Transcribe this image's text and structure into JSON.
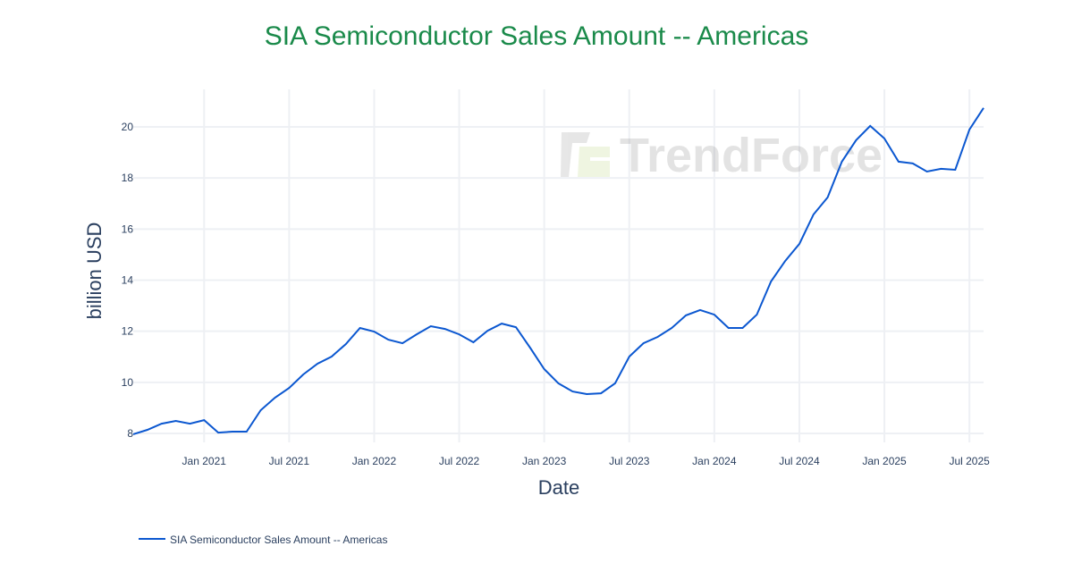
{
  "chart_data": {
    "type": "line",
    "title": "SIA Semiconductor Sales Amount -- Americas",
    "xlabel": "Date",
    "ylabel": "billion USD",
    "x_ticks": [
      "Jan 2021",
      "Jul 2021",
      "Jan 2022",
      "Jul 2022",
      "Jan 2023",
      "Jul 2023",
      "Jan 2024",
      "Jul 2024",
      "Jan 2025",
      "Jul 2025"
    ],
    "y_ticks": [
      8,
      10,
      12,
      14,
      16,
      18,
      20
    ],
    "xlim": [
      "2020-08",
      "2025-08"
    ],
    "ylim": [
      7.6,
      21.6
    ],
    "grid": true,
    "legend_position": "bottom-left",
    "title_color": "#1a8a4a",
    "series": [
      {
        "name": "SIA Semiconductor Sales Amount -- Americas",
        "color": "#0b57d0",
        "x": [
          "2020-08",
          "2020-09",
          "2020-10",
          "2020-11",
          "2020-12",
          "2021-01",
          "2021-02",
          "2021-03",
          "2021-04",
          "2021-05",
          "2021-06",
          "2021-07",
          "2021-08",
          "2021-09",
          "2021-10",
          "2021-11",
          "2021-12",
          "2022-01",
          "2022-02",
          "2022-03",
          "2022-04",
          "2022-05",
          "2022-06",
          "2022-07",
          "2022-08",
          "2022-09",
          "2022-10",
          "2022-11",
          "2022-12",
          "2023-01",
          "2023-02",
          "2023-03",
          "2023-04",
          "2023-05",
          "2023-06",
          "2023-07",
          "2023-08",
          "2023-09",
          "2023-10",
          "2023-11",
          "2023-12",
          "2024-01",
          "2024-02",
          "2024-03",
          "2024-04",
          "2024-05",
          "2024-06",
          "2024-07",
          "2024-08",
          "2024-09",
          "2024-10",
          "2024-11",
          "2024-12",
          "2025-01",
          "2025-02",
          "2025-03",
          "2025-04",
          "2025-05",
          "2025-06",
          "2025-07",
          "2025-08"
        ],
        "values": [
          7.97,
          8.14,
          8.38,
          8.49,
          8.38,
          8.52,
          8.03,
          8.07,
          8.07,
          8.91,
          9.4,
          9.78,
          10.31,
          10.73,
          11.01,
          11.5,
          12.13,
          11.99,
          11.67,
          11.53,
          11.88,
          12.2,
          12.09,
          11.88,
          11.57,
          12.02,
          12.3,
          12.16,
          11.36,
          10.52,
          9.96,
          9.64,
          9.54,
          9.57,
          9.96,
          11.01,
          11.53,
          11.78,
          12.13,
          12.62,
          12.83,
          12.65,
          12.13,
          12.13,
          12.65,
          13.95,
          14.75,
          15.42,
          16.57,
          17.24,
          18.64,
          19.48,
          20.04,
          19.55,
          18.64,
          18.57,
          18.25,
          18.36,
          18.32,
          19.9,
          20.74
        ]
      }
    ]
  },
  "watermark": "TrendForce"
}
